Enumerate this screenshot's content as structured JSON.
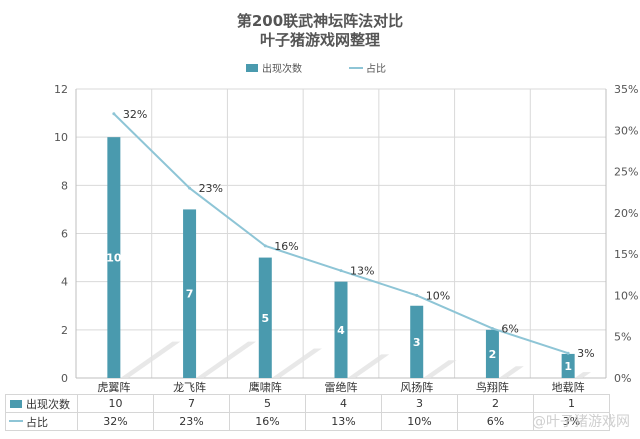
{
  "title_line1": "第200联武神坛阵法对比",
  "title_line2": "叶子猪游戏网整理",
  "legend": {
    "bar": "出现次数",
    "line": "占比"
  },
  "watermark": "@叶子猪游戏网",
  "colors": {
    "bar": "#4a9aae",
    "line": "#8ec5d6",
    "grid": "#d9d9d9",
    "bar_label": "#ffffff"
  },
  "chart_data": {
    "type": "bar",
    "categories": [
      "虎翼阵",
      "龙飞阵",
      "鹰啸阵",
      "雷绝阵",
      "风扬阵",
      "鸟翔阵",
      "地载阵"
    ],
    "series": [
      {
        "name": "出现次数",
        "type": "bar",
        "axis": "left",
        "values": [
          10,
          7,
          5,
          4,
          3,
          2,
          1
        ]
      },
      {
        "name": "占比",
        "type": "line",
        "axis": "right",
        "values": [
          32,
          23,
          16,
          13,
          10,
          6,
          3
        ]
      }
    ],
    "y_left": {
      "min": 0,
      "max": 12,
      "step": 2,
      "ticks": [
        "0",
        "2",
        "4",
        "6",
        "8",
        "10",
        "12"
      ]
    },
    "y_right": {
      "min": 0,
      "max": 35,
      "step": 5,
      "ticks": [
        "0%",
        "5%",
        "10%",
        "15%",
        "20%",
        "25%",
        "30%",
        "35%"
      ]
    },
    "bar_labels": [
      "10",
      "7",
      "5",
      "4",
      "3",
      "2",
      "1"
    ],
    "line_labels": [
      "32%",
      "23%",
      "16%",
      "13%",
      "10%",
      "6%",
      "3%"
    ],
    "legend_position": "top",
    "grid": true
  },
  "table": {
    "rows": [
      {
        "label": "出现次数",
        "values": [
          "10",
          "7",
          "5",
          "4",
          "3",
          "2",
          "1"
        ]
      },
      {
        "label": "占比",
        "values": [
          "32%",
          "23%",
          "16%",
          "13%",
          "10%",
          "6%",
          "3%"
        ]
      }
    ]
  }
}
